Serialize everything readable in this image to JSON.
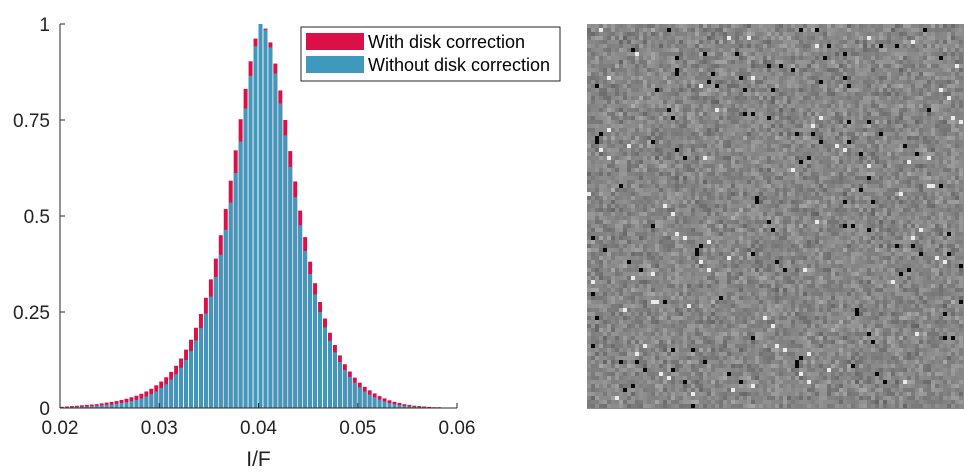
{
  "colors": {
    "with_disk": "#dc1048",
    "without_disk": "#3f99bd",
    "axis": "#262626",
    "image_bg": "#8a8a8a"
  },
  "image_panel": {
    "kind": "grayscale difference map",
    "description_icon": "grayscale-noise-image"
  },
  "chart_data": {
    "type": "bar",
    "xlabel": "I/F",
    "ylabel": "",
    "xlim": [
      0.02,
      0.06
    ],
    "ylim": [
      0,
      1
    ],
    "xticks": [
      "0.02",
      "0.03",
      "0.04",
      "0.05",
      "0.06"
    ],
    "yticks": [
      "0",
      "0.25",
      "0.5",
      "0.75",
      "1"
    ],
    "legend_position": "top-right",
    "bin_width": 0.0005,
    "bin_start": 0.02,
    "series": [
      {
        "name": "With disk correction",
        "color": "#dc1048",
        "values": [
          0.003,
          0.004,
          0.005,
          0.006,
          0.007,
          0.008,
          0.009,
          0.01,
          0.012,
          0.014,
          0.016,
          0.018,
          0.021,
          0.024,
          0.028,
          0.032,
          0.037,
          0.043,
          0.05,
          0.059,
          0.069,
          0.08,
          0.094,
          0.11,
          0.129,
          0.152,
          0.178,
          0.209,
          0.245,
          0.287,
          0.335,
          0.389,
          0.45,
          0.518,
          0.592,
          0.671,
          0.752,
          0.831,
          0.903,
          0.962,
          1.0,
          0.988,
          0.952,
          0.897,
          0.827,
          0.75,
          0.669,
          0.59,
          0.514,
          0.445,
          0.381,
          0.325,
          0.276,
          0.233,
          0.196,
          0.164,
          0.137,
          0.114,
          0.095,
          0.079,
          0.066,
          0.055,
          0.046,
          0.038,
          0.031,
          0.025,
          0.02,
          0.016,
          0.013,
          0.01,
          0.008,
          0.006,
          0.005,
          0.004,
          0.003,
          0.002,
          0.002,
          0.001,
          0.001,
          0.001
        ]
      },
      {
        "name": "Without disk correction",
        "color": "#3f99bd",
        "values": [
          0.001,
          0.002,
          0.002,
          0.003,
          0.003,
          0.004,
          0.005,
          0.006,
          0.007,
          0.008,
          0.009,
          0.011,
          0.013,
          0.015,
          0.018,
          0.021,
          0.025,
          0.03,
          0.036,
          0.043,
          0.052,
          0.062,
          0.074,
          0.088,
          0.105,
          0.125,
          0.148,
          0.176,
          0.208,
          0.246,
          0.29,
          0.341,
          0.399,
          0.464,
          0.535,
          0.612,
          0.694,
          0.78,
          0.865,
          0.942,
          1.0,
          0.985,
          0.939,
          0.871,
          0.793,
          0.71,
          0.628,
          0.549,
          0.476,
          0.409,
          0.349,
          0.296,
          0.25,
          0.21,
          0.175,
          0.145,
          0.12,
          0.099,
          0.081,
          0.066,
          0.054,
          0.043,
          0.035,
          0.028,
          0.022,
          0.017,
          0.013,
          0.01,
          0.008,
          0.006,
          0.004,
          0.003,
          0.002,
          0.002,
          0.001,
          0.001,
          0.001,
          0.0,
          0.0,
          0.0
        ]
      }
    ]
  }
}
